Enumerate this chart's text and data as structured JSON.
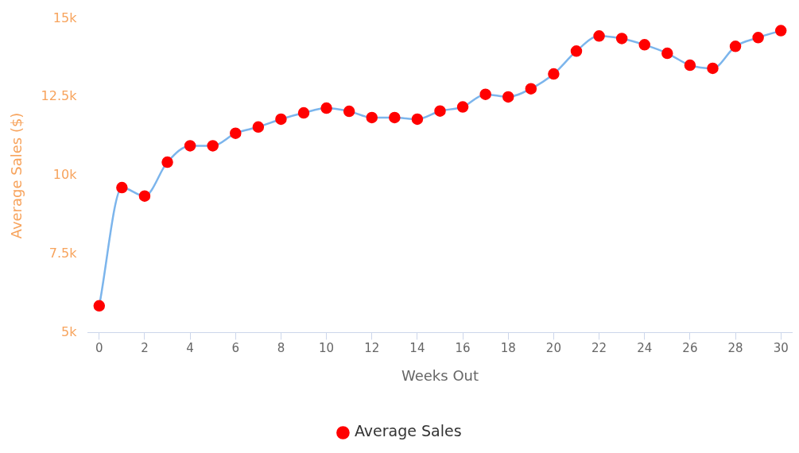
{
  "chart_data": {
    "type": "line",
    "xlabel": "Weeks Out",
    "ylabel": "Average Sales ($)",
    "x": [
      0,
      1,
      2,
      3,
      4,
      5,
      6,
      7,
      8,
      9,
      10,
      11,
      12,
      13,
      14,
      15,
      16,
      17,
      18,
      19,
      20,
      21,
      22,
      23,
      24,
      25,
      26,
      27,
      28,
      29,
      30
    ],
    "series": [
      {
        "name": "Average Sales",
        "color": "#7cb5ec",
        "colors": [
          "#ff0000",
          "#ff0000",
          "#ff0000",
          "#ff0000",
          "#ff0000",
          "#ff0000",
          "#ff0000",
          "#ff0000",
          "#ff0000",
          "#ff0000",
          "#ff0000",
          "#ff0000",
          "#ff0000",
          "#ff0000",
          "#ff0000",
          "#ff0000",
          "#ff0000",
          "#ff0000",
          "#ff0000",
          "#ff0000",
          "#ff0000",
          "#ff0000",
          "#ff0000",
          "#ff0000",
          "#ff0000",
          "#ff0000",
          "#ff0000",
          "#ff0000",
          "#ff0000",
          "#ff0000",
          "#ff0000"
        ],
        "values": [
          5850,
          9620,
          9350,
          10430,
          10950,
          10950,
          11350,
          11550,
          11800,
          12000,
          12150,
          12050,
          11850,
          11850,
          11800,
          12060,
          12190,
          12590,
          12510,
          12770,
          13240,
          13970,
          14450,
          14370,
          14170,
          13900,
          13520,
          13420,
          14120,
          14400,
          14620
        ]
      }
    ],
    "xlim": [
      -0.5,
      30.5
    ],
    "xticks": [
      0,
      2,
      4,
      6,
      8,
      10,
      12,
      14,
      16,
      18,
      20,
      22,
      24,
      26,
      28,
      30
    ],
    "ylim": [
      5000,
      15000
    ],
    "yticks": [
      {
        "value": 5000,
        "label": "5k"
      },
      {
        "value": 7500,
        "label": "7.5k"
      },
      {
        "value": 10000,
        "label": "10k"
      },
      {
        "value": 12500,
        "label": "12.5k"
      },
      {
        "value": 15000,
        "label": "15k"
      }
    ],
    "grid": false,
    "legend": "bottom",
    "marker": "circle",
    "line_style": "solid"
  }
}
